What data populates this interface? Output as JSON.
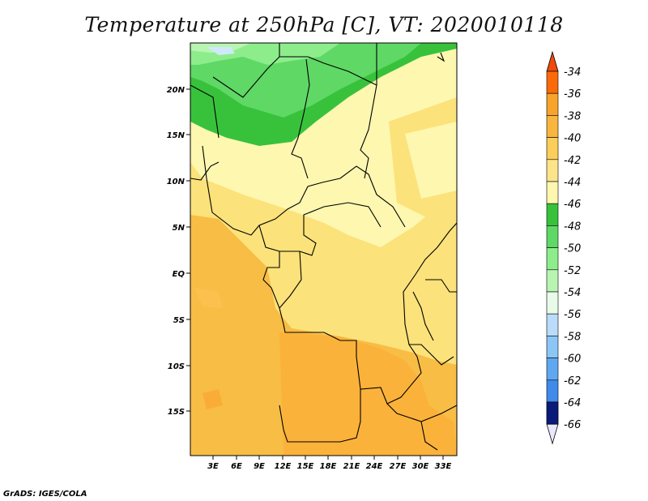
{
  "title": "Temperature at 250hPa [C], VT: 2020010118",
  "footer": "GrADS: IGES/COLA",
  "lat_labels": [
    "20N",
    "15N",
    "10N",
    "5N",
    "EQ",
    "5S",
    "10S",
    "15S"
  ],
  "lon_labels": [
    "3E",
    "6E",
    "9E",
    "12E",
    "15E",
    "18E",
    "21E",
    "24E",
    "27E",
    "30E",
    "33E"
  ],
  "colorbar": {
    "labels": [
      "-34",
      "-36",
      "-38",
      "-40",
      "-42",
      "-44",
      "-46",
      "-48",
      "-50",
      "-52",
      "-54",
      "-56",
      "-58",
      "-60",
      "-62",
      "-64",
      "-66"
    ],
    "colors": [
      "#f04a0a",
      "#fa7d0a",
      "#f8a32a",
      "#f8bd45",
      "#fce27a",
      "#fdf7b0",
      "#38c23c",
      "#5fd866",
      "#8ded8b",
      "#b8f5b2",
      "#e8fae8",
      "#cfe8fb",
      "#a8d6fb",
      "#7dbcf5",
      "#4e9ef0",
      "#2e7ee8",
      "#155ed8",
      "#0d3fb8",
      "#0a2484"
    ],
    "top_color": "#f04a0a",
    "bottom_color": "#e8e8ff"
  }
}
